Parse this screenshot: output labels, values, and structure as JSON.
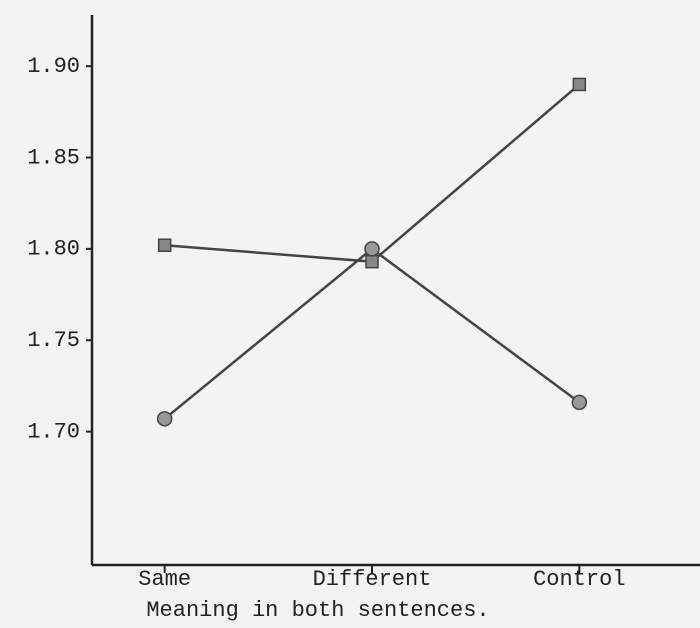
{
  "chart_data": {
    "type": "line",
    "x_label": "Meaning in both sentences.",
    "categories": [
      "Same",
      "Different",
      "Control"
    ],
    "series": [
      {
        "color": "#444444",
        "marker": "square",
        "values": [
          1.802,
          1.793,
          1.89
        ]
      },
      {
        "color": "#444444",
        "marker": "circle",
        "values": [
          1.707,
          1.8,
          1.716
        ]
      }
    ],
    "ylim": [
      1.627,
      1.928
    ],
    "yticks": [
      {
        "value": 1.7,
        "label": "1.70"
      },
      1.75,
      {
        "value": 1.8,
        "label": "1.80"
      },
      1.85,
      {
        "value": 1.9,
        "label": "1.90"
      }
    ],
    "grid": false
  }
}
